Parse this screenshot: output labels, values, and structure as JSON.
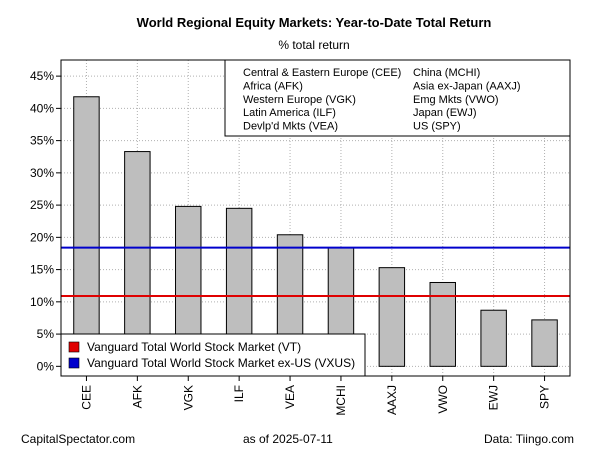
{
  "chart_data": {
    "type": "bar",
    "title": "World Regional Equity Markets: Year-to-Date Total Return",
    "subtitle": "% total return",
    "categories": [
      "CEE",
      "AFK",
      "VGK",
      "ILF",
      "VEA",
      "MCHI",
      "AAXJ",
      "VWO",
      "EWJ",
      "SPY"
    ],
    "values": [
      41.8,
      33.3,
      24.8,
      24.5,
      20.4,
      18.4,
      15.3,
      13.0,
      8.7,
      7.2
    ],
    "ylim": [
      -1.5,
      47.5
    ],
    "yticks": [
      0,
      5,
      10,
      15,
      20,
      25,
      30,
      35,
      40,
      45
    ],
    "ytick_labels": [
      "0%",
      "5%",
      "10%",
      "15%",
      "20%",
      "25%",
      "30%",
      "35%",
      "40%",
      "45%"
    ],
    "grid": true,
    "bar_color": "#bebebe",
    "reference_lines": [
      {
        "name": "Vanguard Total World Stock Market (VT)",
        "value": 10.9,
        "color": "#e00000"
      },
      {
        "name": "Vanguard Total World Stock Market ex-US (VXUS)",
        "value": 18.4,
        "color": "#0000cc"
      }
    ],
    "legend_top": {
      "position": "top-right",
      "col1": [
        "Central & Eastern Europe (CEE)",
        "Africa (AFK)",
        "Western Europe (VGK)",
        "Latin America (ILF)",
        "Devlp'd Mkts (VEA)"
      ],
      "col2": [
        "China (MCHI)",
        "Asia ex-Japan (AAXJ)",
        "Emg Mkts (VWO)",
        "Japan (EWJ)",
        "US (SPY)"
      ]
    },
    "legend_lines_position": "bottom-left"
  },
  "footer": {
    "left": "CapitalSpectator.com",
    "middle": "as of   2025-07-11",
    "right": "Data: Tiingo.com"
  }
}
